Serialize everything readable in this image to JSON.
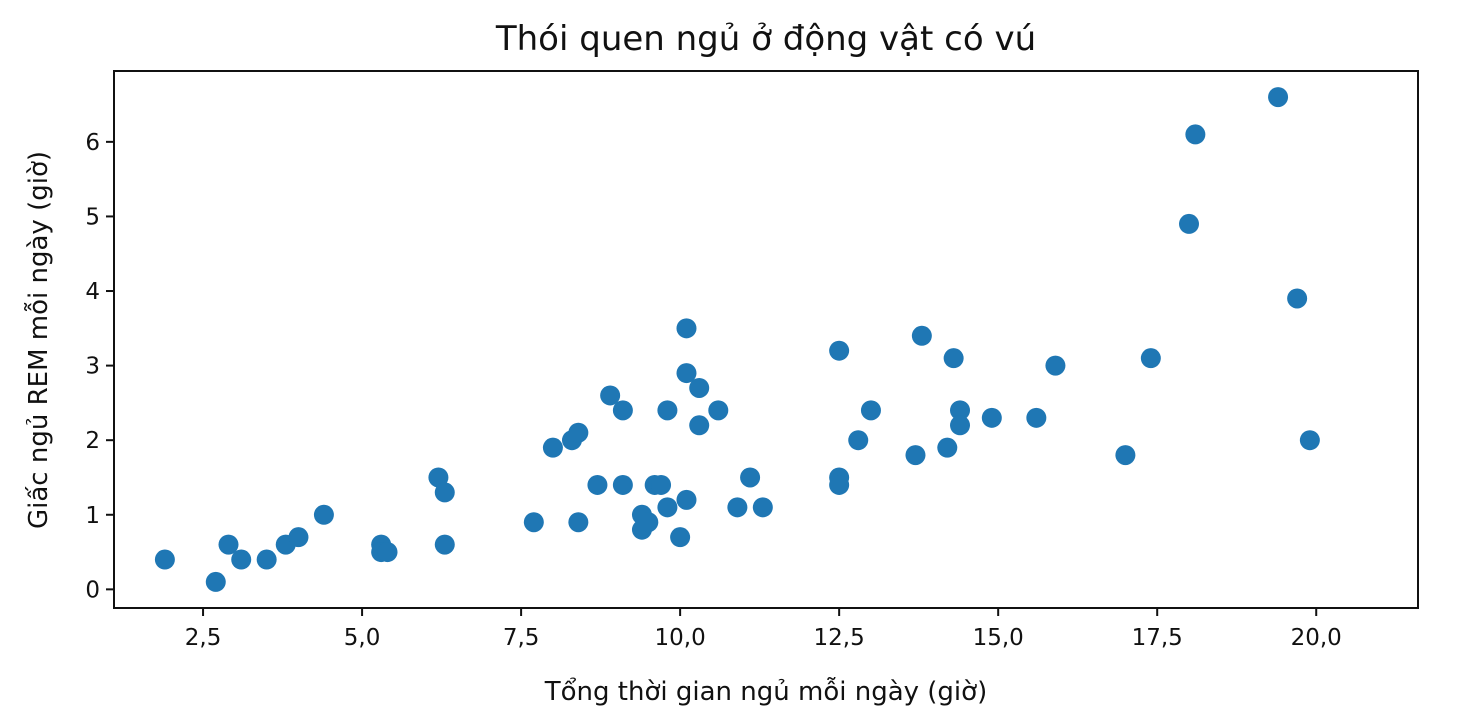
{
  "chart_data": {
    "type": "scatter",
    "title": "Thói quen ngủ ở động vật có vú",
    "xlabel": "Tổng thời gian ngủ mỗi ngày (giờ)",
    "ylabel": "Giấc ngủ REM mỗi ngày (giờ)",
    "xlim": [
      1.1,
      21.6
    ],
    "ylim": [
      -0.25,
      6.95
    ],
    "xticks": [
      2.5,
      5.0,
      7.5,
      10.0,
      12.5,
      15.0,
      17.5,
      20.0
    ],
    "xtick_labels": [
      "2,5",
      "5,0",
      "7,5",
      "10,0",
      "12,5",
      "15,0",
      "17,5",
      "20,0"
    ],
    "yticks": [
      0,
      1,
      2,
      3,
      4,
      5,
      6
    ],
    "ytick_labels": [
      "0",
      "1",
      "2",
      "3",
      "4",
      "5",
      "6"
    ],
    "grid": false,
    "point_color": "#1f77b4",
    "points": [
      [
        1.9,
        0.4
      ],
      [
        2.7,
        0.1
      ],
      [
        2.9,
        0.6
      ],
      [
        3.1,
        0.4
      ],
      [
        3.5,
        0.4
      ],
      [
        3.8,
        0.6
      ],
      [
        4.0,
        0.7
      ],
      [
        4.4,
        1.0
      ],
      [
        5.3,
        0.6
      ],
      [
        5.3,
        0.5
      ],
      [
        5.4,
        0.5
      ],
      [
        6.2,
        1.5
      ],
      [
        6.3,
        1.3
      ],
      [
        6.3,
        0.6
      ],
      [
        7.7,
        0.9
      ],
      [
        8.0,
        1.9
      ],
      [
        8.3,
        2.0
      ],
      [
        8.4,
        2.1
      ],
      [
        8.4,
        0.9
      ],
      [
        8.7,
        1.4
      ],
      [
        8.9,
        2.6
      ],
      [
        9.1,
        2.4
      ],
      [
        9.1,
        1.4
      ],
      [
        9.4,
        1.0
      ],
      [
        9.4,
        0.8
      ],
      [
        9.5,
        0.9
      ],
      [
        9.6,
        1.4
      ],
      [
        9.7,
        1.4
      ],
      [
        9.8,
        2.4
      ],
      [
        9.8,
        1.1
      ],
      [
        10.0,
        0.7
      ],
      [
        10.1,
        3.5
      ],
      [
        10.1,
        2.9
      ],
      [
        10.1,
        1.2
      ],
      [
        10.3,
        2.7
      ],
      [
        10.3,
        2.2
      ],
      [
        10.6,
        2.4
      ],
      [
        10.9,
        1.1
      ],
      [
        11.1,
        1.5
      ],
      [
        11.3,
        1.1
      ],
      [
        12.5,
        3.2
      ],
      [
        12.5,
        1.5
      ],
      [
        12.5,
        1.4
      ],
      [
        12.8,
        2.0
      ],
      [
        13.0,
        2.4
      ],
      [
        13.7,
        1.8
      ],
      [
        13.8,
        3.4
      ],
      [
        14.2,
        1.9
      ],
      [
        14.3,
        3.1
      ],
      [
        14.4,
        2.4
      ],
      [
        14.4,
        2.2
      ],
      [
        14.9,
        2.3
      ],
      [
        15.6,
        2.3
      ],
      [
        15.9,
        3.0
      ],
      [
        17.0,
        1.8
      ],
      [
        17.4,
        3.1
      ],
      [
        18.0,
        4.9
      ],
      [
        18.1,
        6.1
      ],
      [
        19.4,
        6.6
      ],
      [
        19.7,
        3.9
      ],
      [
        19.9,
        2.0
      ]
    ]
  }
}
